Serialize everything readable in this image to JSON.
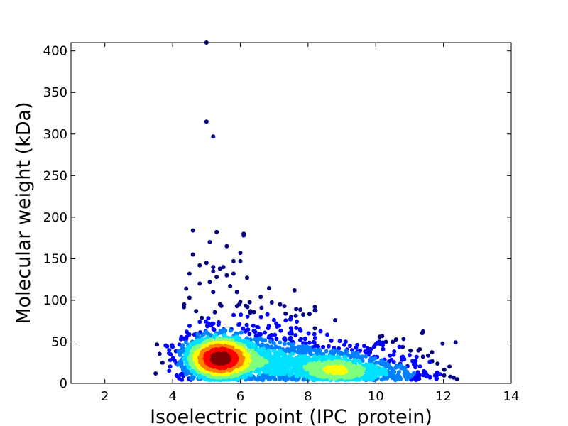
{
  "chart_data": {
    "type": "scatter",
    "title": "",
    "xlabel": "Isoelectric point (IPC_protein)",
    "ylabel": "Molecular weight (kDa)",
    "xlim": [
      1,
      14
    ],
    "ylim": [
      0,
      410
    ],
    "x_ticks": [
      2,
      4,
      6,
      8,
      10,
      12,
      14
    ],
    "y_ticks": [
      0,
      50,
      100,
      150,
      200,
      250,
      300,
      350,
      400
    ],
    "colormap": [
      "#00007f",
      "#0000ff",
      "#0080ff",
      "#00e0ff",
      "#7fff7f",
      "#ffff00",
      "#ff8000",
      "#ff0000",
      "#7f0000"
    ],
    "clusters": [
      {
        "x": 5.4,
        "y": 30,
        "sx": 0.55,
        "sy": 14,
        "n": 1700
      },
      {
        "x": 7.1,
        "y": 24,
        "sx": 0.7,
        "sy": 13,
        "n": 450
      },
      {
        "x": 8.8,
        "y": 16,
        "sx": 0.65,
        "sy": 10,
        "n": 550
      },
      {
        "x": 10.2,
        "y": 12,
        "sx": 0.8,
        "sy": 9,
        "n": 200
      },
      {
        "x": 6.4,
        "y": 55,
        "sx": 1.2,
        "sy": 20,
        "n": 160
      },
      {
        "x": 9.0,
        "y": 35,
        "sx": 1.2,
        "sy": 12,
        "n": 120
      }
    ],
    "outliers": [
      [
        5.0,
        410
      ],
      [
        5.0,
        315
      ],
      [
        5.2,
        297
      ],
      [
        4.6,
        184
      ],
      [
        5.3,
        182
      ],
      [
        6.1,
        180
      ],
      [
        6.1,
        178
      ],
      [
        4.6,
        155
      ],
      [
        5.1,
        170
      ],
      [
        5.6,
        165
      ],
      [
        6.0,
        157
      ],
      [
        5.8,
        147
      ],
      [
        6.0,
        147
      ],
      [
        4.8,
        142
      ],
      [
        5.0,
        145
      ],
      [
        5.2,
        140
      ],
      [
        5.4,
        138
      ],
      [
        5.5,
        140
      ],
      [
        4.5,
        132
      ],
      [
        5.2,
        135
      ],
      [
        5.3,
        128
      ],
      [
        5.6,
        130
      ],
      [
        6.2,
        127
      ],
      [
        5.8,
        132
      ],
      [
        4.8,
        120
      ],
      [
        5.1,
        122
      ],
      [
        5.7,
        117
      ],
      [
        4.4,
        114
      ],
      [
        5.2,
        110
      ],
      [
        5.9,
        110
      ],
      [
        4.5,
        103
      ],
      [
        7.6,
        112
      ],
      [
        6.6,
        104
      ],
      [
        6.0,
        98
      ],
      [
        5.4,
        95
      ],
      [
        5.9,
        93
      ],
      [
        7.3,
        93
      ],
      [
        8.2,
        92
      ],
      [
        6.8,
        83
      ],
      [
        8.2,
        88
      ],
      [
        7.5,
        80
      ],
      [
        8.8,
        76
      ],
      [
        3.9,
        40
      ],
      [
        3.7,
        25
      ],
      [
        3.5,
        12
      ],
      [
        3.9,
        15
      ],
      [
        11.0,
        34
      ],
      [
        10.8,
        32
      ],
      [
        11.4,
        10
      ],
      [
        11.6,
        8
      ],
      [
        11.9,
        11
      ],
      [
        12.2,
        8
      ],
      [
        12.4,
        5
      ],
      [
        12.3,
        7
      ],
      [
        11.8,
        6
      ],
      [
        10.5,
        50
      ],
      [
        10.7,
        44
      ],
      [
        10.0,
        47
      ],
      [
        10.3,
        50
      ]
    ]
  }
}
